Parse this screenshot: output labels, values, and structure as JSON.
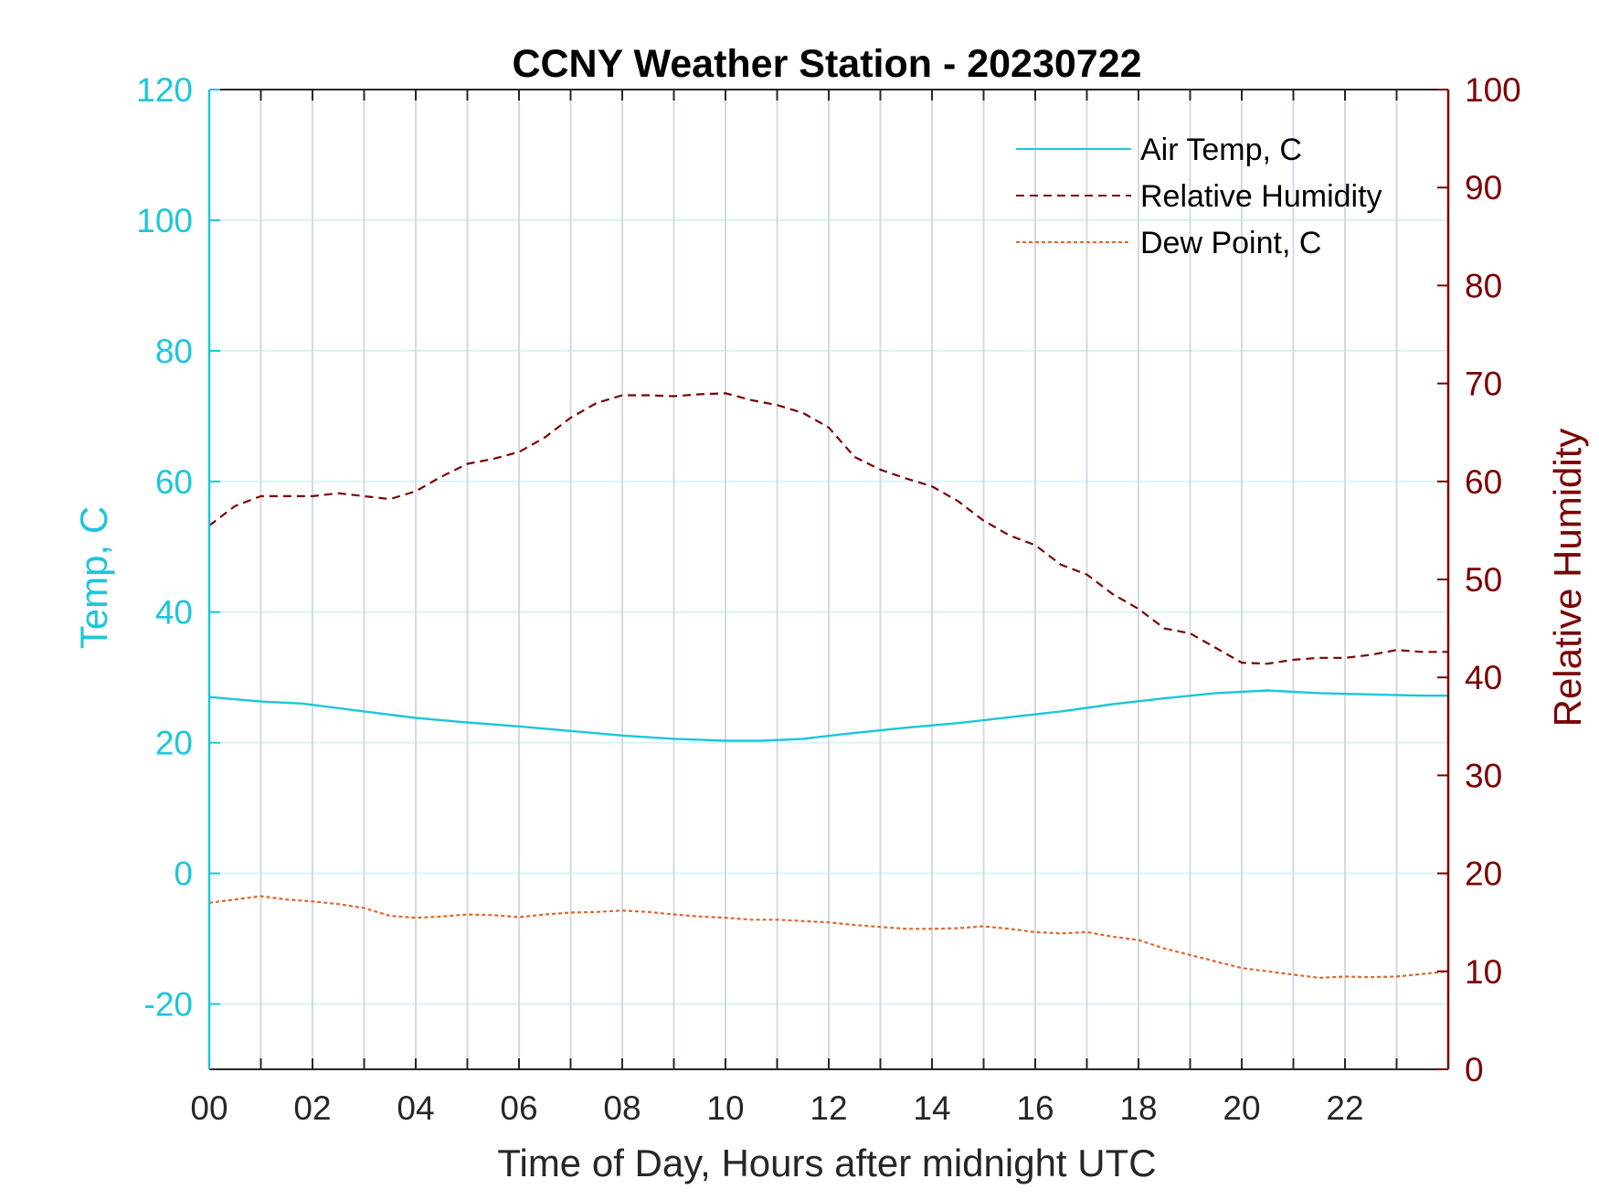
{
  "chart_data": {
    "type": "line",
    "title": "CCNY Weather Station - 20230722",
    "xlabel": "Time of Day, Hours after midnight UTC",
    "ylabel_left": "Temp, C",
    "ylabel_right": "Relative Humidity",
    "xlim": [
      0,
      24
    ],
    "ylim_left": [
      -30,
      120
    ],
    "ylim_right": [
      0,
      100
    ],
    "x_ticks": [
      0,
      2,
      4,
      6,
      8,
      10,
      12,
      14,
      16,
      18,
      20,
      22
    ],
    "x_tick_labels": [
      "00",
      "02",
      "04",
      "06",
      "08",
      "10",
      "12",
      "14",
      "16",
      "18",
      "20",
      "22"
    ],
    "y_left_ticks": [
      -20,
      0,
      20,
      40,
      60,
      80,
      100,
      120
    ],
    "y_left_tick_labels": [
      "-20",
      "0",
      "20",
      "40",
      "60",
      "80",
      "100",
      "120"
    ],
    "y_right_ticks": [
      0,
      10,
      20,
      30,
      40,
      50,
      60,
      70,
      80,
      90,
      100
    ],
    "y_right_tick_labels": [
      "0",
      "10",
      "20",
      "30",
      "40",
      "50",
      "60",
      "70",
      "80",
      "90",
      "100"
    ],
    "grid": true,
    "legend_position": "top-right",
    "colors": {
      "left_axis": "#1cc6da",
      "right_axis": "#7a0000",
      "air_temp": "#1cc6da",
      "humidity": "#7a0000",
      "dew_point": "#e0672a",
      "grid_vertical": "#d4dae0",
      "grid_horizontal": "#d6f3f7"
    },
    "series": [
      {
        "name": "Air Temp, C",
        "axis": "left",
        "style": "solid",
        "x": [
          0,
          1,
          1.8,
          3,
          4,
          5,
          6,
          7,
          8,
          9,
          10,
          10.7,
          11.5,
          12.5,
          13.5,
          14.5,
          15.5,
          16.5,
          17.5,
          18.5,
          19.5,
          20.5,
          21.5,
          22.5,
          23.5,
          24
        ],
        "y": [
          27,
          26.3,
          26,
          24.8,
          23.8,
          23.1,
          22.5,
          21.8,
          21.1,
          20.6,
          20.3,
          20.3,
          20.6,
          21.5,
          22.3,
          23,
          23.9,
          24.8,
          25.9,
          26.8,
          27.6,
          28,
          27.6,
          27.4,
          27.2,
          27.2
        ]
      },
      {
        "name": "Relative Humidity",
        "axis": "right",
        "style": "dashed",
        "x": [
          0,
          0.5,
          1,
          1.5,
          2,
          2.5,
          3,
          3.5,
          4,
          4.5,
          5,
          5.5,
          6,
          6.5,
          7,
          7.5,
          8,
          8.5,
          9,
          9.5,
          10,
          10.5,
          11,
          11.5,
          12,
          12.5,
          13,
          13.5,
          14,
          14.5,
          15,
          15.5,
          16,
          16.5,
          17,
          17.5,
          18,
          18.5,
          19,
          19.5,
          20,
          20.5,
          21,
          21.5,
          22,
          22.5,
          23,
          23.5,
          24
        ],
        "y": [
          55.5,
          57.5,
          58.5,
          58.5,
          58.5,
          58.8,
          58.5,
          58.2,
          59,
          60.5,
          61.8,
          62.3,
          63,
          64.5,
          66.5,
          68,
          68.8,
          68.8,
          68.7,
          68.9,
          69,
          68.3,
          67.8,
          67,
          65.5,
          62.5,
          61.2,
          60.3,
          59.5,
          58,
          56,
          54.5,
          53.5,
          51.5,
          50.5,
          48.5,
          47,
          45,
          44.5,
          43,
          41.5,
          41.4,
          41.8,
          42,
          42,
          42.3,
          42.8,
          42.6,
          42.6
        ]
      },
      {
        "name": "Dew Point, C",
        "axis": "left",
        "style": "dotted",
        "x": [
          0,
          0.5,
          1,
          1.5,
          2,
          2.5,
          3,
          3.5,
          4,
          4.5,
          5,
          5.5,
          6,
          6.5,
          7,
          7.5,
          8,
          8.5,
          9,
          9.5,
          10,
          10.5,
          11,
          11.5,
          12,
          12.5,
          13,
          13.5,
          14,
          14.5,
          15,
          15.5,
          16,
          16.5,
          17,
          17.5,
          18,
          18.5,
          19,
          19.5,
          20,
          20.5,
          21,
          21.5,
          22,
          22.5,
          23,
          23.5,
          24
        ],
        "y": [
          -4.5,
          -4,
          -3.5,
          -4,
          -4.3,
          -4.7,
          -5.3,
          -6.5,
          -6.8,
          -6.6,
          -6.3,
          -6.4,
          -6.7,
          -6.3,
          -6,
          -5.9,
          -5.7,
          -5.9,
          -6.3,
          -6.6,
          -6.8,
          -7.1,
          -7.1,
          -7.3,
          -7.5,
          -7.9,
          -8.2,
          -8.5,
          -8.5,
          -8.4,
          -8.1,
          -8.5,
          -9,
          -9.2,
          -9,
          -9.7,
          -10.2,
          -11.5,
          -12.5,
          -13.5,
          -14.5,
          -15,
          -15.5,
          -16,
          -15.8,
          -15.9,
          -15.8,
          -15.4,
          -15
        ]
      }
    ]
  }
}
